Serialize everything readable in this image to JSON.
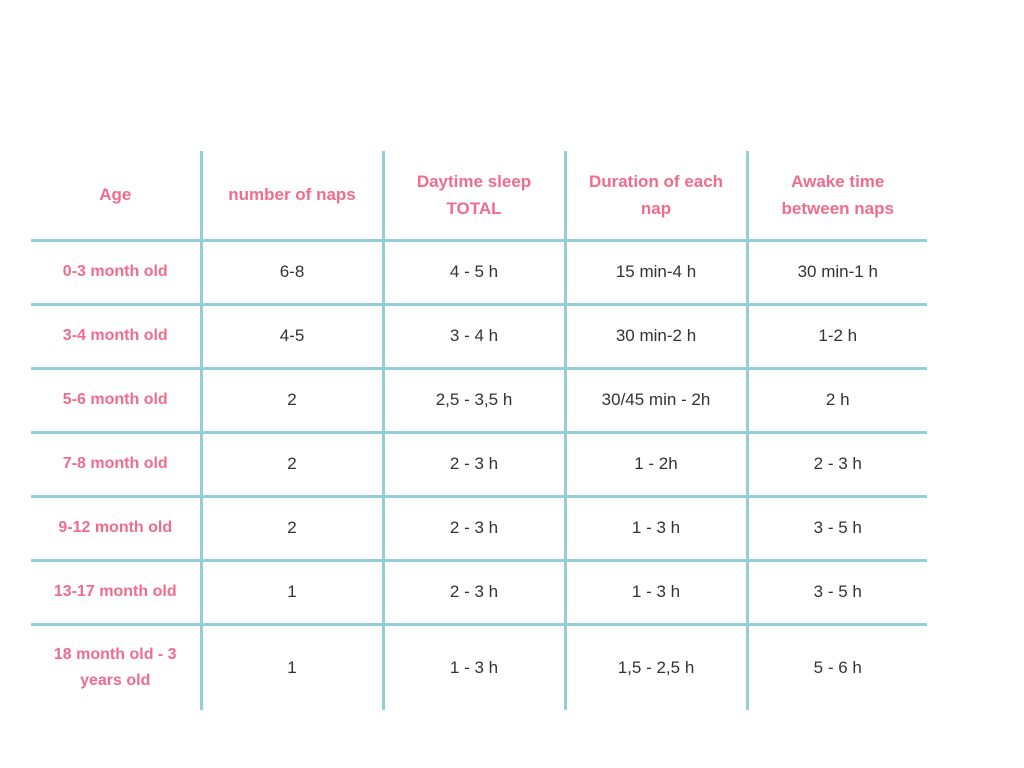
{
  "table": {
    "headers": {
      "age": "Age",
      "naps": "number of naps",
      "total": "Daytime sleep TOTAL",
      "duration": "Duration of each nap",
      "awake": "Awake time between naps"
    },
    "rows": [
      {
        "age": "0-3 month old",
        "naps": "6-8",
        "total": "4 - 5 h",
        "duration": "15 min-4 h",
        "awake": "30 min-1 h"
      },
      {
        "age": "3-4 month old",
        "naps": "4-5",
        "total": "3 - 4 h",
        "duration": "30 min-2 h",
        "awake": "1-2 h"
      },
      {
        "age": "5-6 month old",
        "naps": "2",
        "total": "2,5 - 3,5 h",
        "duration": "30/45 min - 2h",
        "awake": "2 h"
      },
      {
        "age": "7-8 month old",
        "naps": "2",
        "total": "2 - 3 h",
        "duration": "1 - 2h",
        "awake": "2 - 3 h"
      },
      {
        "age": "9-12 month old",
        "naps": "2",
        "total": "2 - 3 h",
        "duration": "1 - 3 h",
        "awake": "3 - 5 h"
      },
      {
        "age": "13-17 month old",
        "naps": "1",
        "total": "2 - 3 h",
        "duration": "1 - 3 h",
        "awake": "3 - 5 h"
      },
      {
        "age": "18 month old - 3 years old",
        "naps": "1",
        "total": "1 - 3 h",
        "duration": "1,5 - 2,5 h",
        "awake": "5 - 6 h"
      }
    ]
  },
  "colors": {
    "header_text": "#f06c8c",
    "grid_lines": "#93cfd6",
    "cell_text": "#333333"
  }
}
